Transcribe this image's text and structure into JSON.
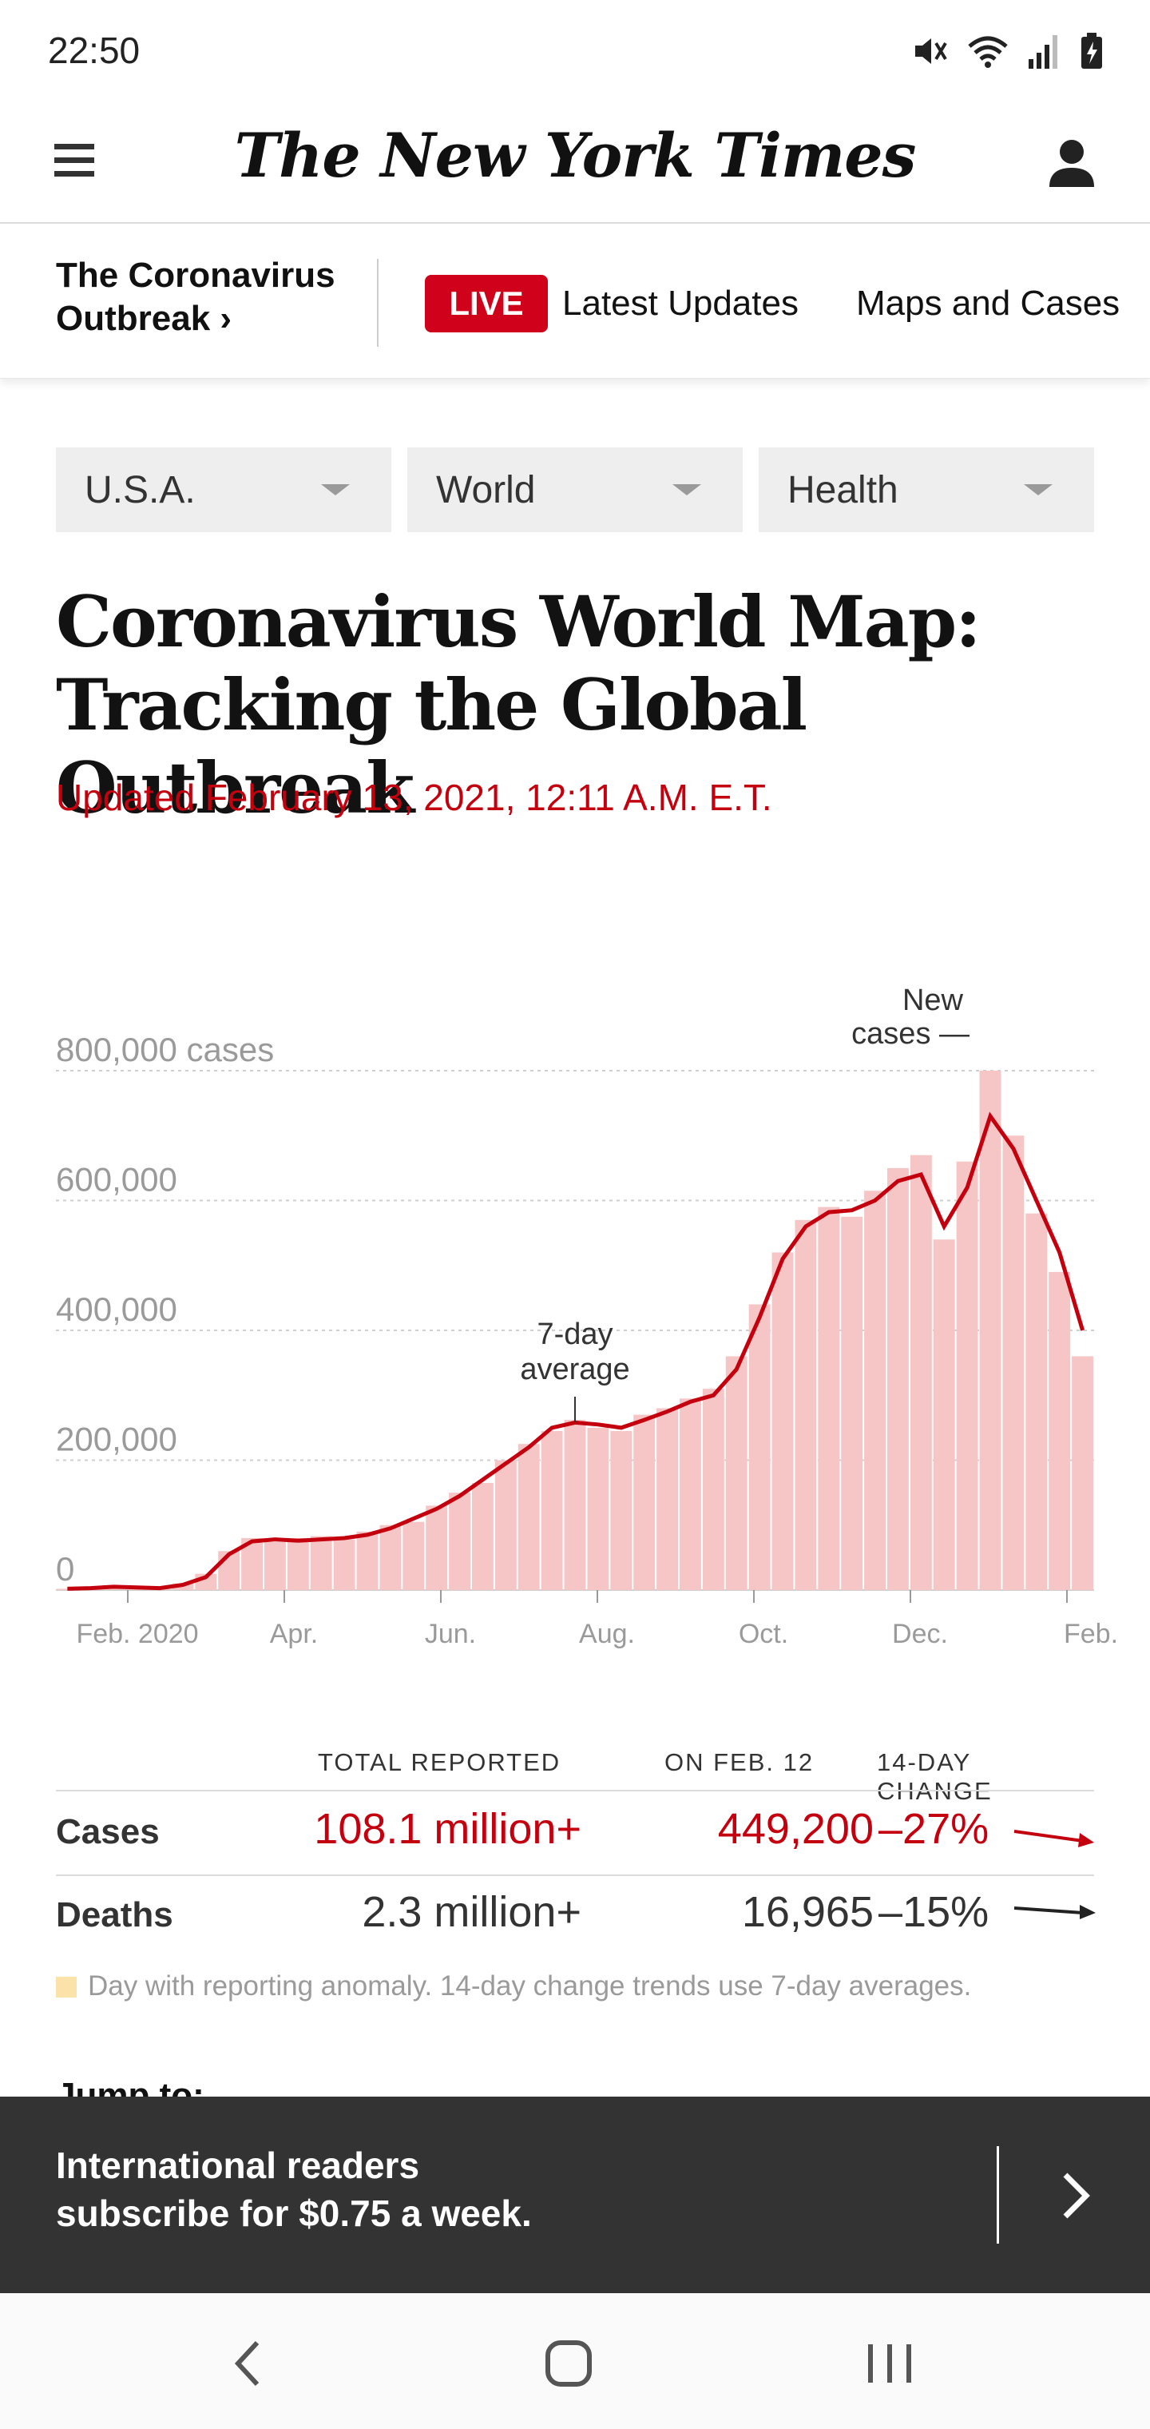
{
  "status_bar": {
    "time": "22:50"
  },
  "masthead": {
    "logo": "The New York Times"
  },
  "subnav": {
    "title": "The Coronavirus Outbreak ›",
    "live_label": "LIVE",
    "latest_updates": "Latest Updates",
    "maps_and_cases": "Maps and Cases"
  },
  "dropdowns": [
    {
      "label": "U.S.A."
    },
    {
      "label": "World"
    },
    {
      "label": "Health"
    }
  ],
  "article": {
    "headline_line1": "Coronavirus World Map:",
    "headline_line2": "Tracking the Global Outbreak",
    "updated": "Updated February 13, 2021, 12:11 A.M. E.T."
  },
  "chart_data": {
    "type": "bar",
    "y_tick_labels": [
      "800,000 cases",
      "600,000",
      "400,000",
      "200,000",
      "0"
    ],
    "y_ticks": [
      800000,
      600000,
      400000,
      200000,
      0
    ],
    "x_tick_labels": [
      "Feb. 2020",
      "Apr.",
      "Jun.",
      "Aug.",
      "Oct.",
      "Dec.",
      "Feb."
    ],
    "ylim": [
      0,
      800000
    ],
    "annotations": {
      "average": "7-day average",
      "average_line1": "7-day",
      "average_line2": "average",
      "new_cases_line1": "New",
      "new_cases_line2": "cases —"
    },
    "grid": true,
    "colors": {
      "bars": "#f6c6c6",
      "average_line": "#c4000e",
      "anomaly": "#fbe2a8"
    },
    "series": [
      {
        "name": "7-day average",
        "values": [
          2000,
          3000,
          5000,
          4000,
          3000,
          8000,
          20000,
          55000,
          75000,
          78000,
          76000,
          78000,
          80000,
          85000,
          95000,
          110000,
          125000,
          145000,
          170000,
          195000,
          220000,
          250000,
          258000,
          255000,
          250000,
          262000,
          275000,
          290000,
          300000,
          340000,
          420000,
          510000,
          560000,
          582000,
          585000,
          600000,
          630000,
          640000,
          560000,
          620000,
          730000,
          680000,
          600000,
          520000,
          400000
        ]
      },
      {
        "name": "New cases",
        "values": [
          2000,
          3000,
          6000,
          4000,
          3000,
          10000,
          25000,
          60000,
          80000,
          74000,
          80000,
          83000,
          78000,
          90000,
          100000,
          105000,
          130000,
          150000,
          165000,
          200000,
          225000,
          245000,
          262000,
          250000,
          245000,
          270000,
          280000,
          295000,
          310000,
          360000,
          440000,
          520000,
          570000,
          590000,
          575000,
          615000,
          650000,
          670000,
          540000,
          660000,
          800000,
          700000,
          580000,
          490000,
          360000
        ]
      }
    ]
  },
  "stats": {
    "headers": {
      "total": "TOTAL REPORTED",
      "on_date": "ON FEB. 12",
      "change": "14-DAY CHANGE"
    },
    "rows": [
      {
        "label": "Cases",
        "total": "108.1 million+",
        "on_date": "449,200",
        "change": "–27%"
      },
      {
        "label": "Deaths",
        "total": "2.3 million+",
        "on_date": "16,965",
        "change": "–15%"
      }
    ],
    "footnote": "Day with reporting anomaly. 14-day change trends use 7-day averages."
  },
  "jump_to": "Jump to:",
  "banner": {
    "line1": "International readers",
    "line2": "subscribe for $0.75 a week."
  }
}
